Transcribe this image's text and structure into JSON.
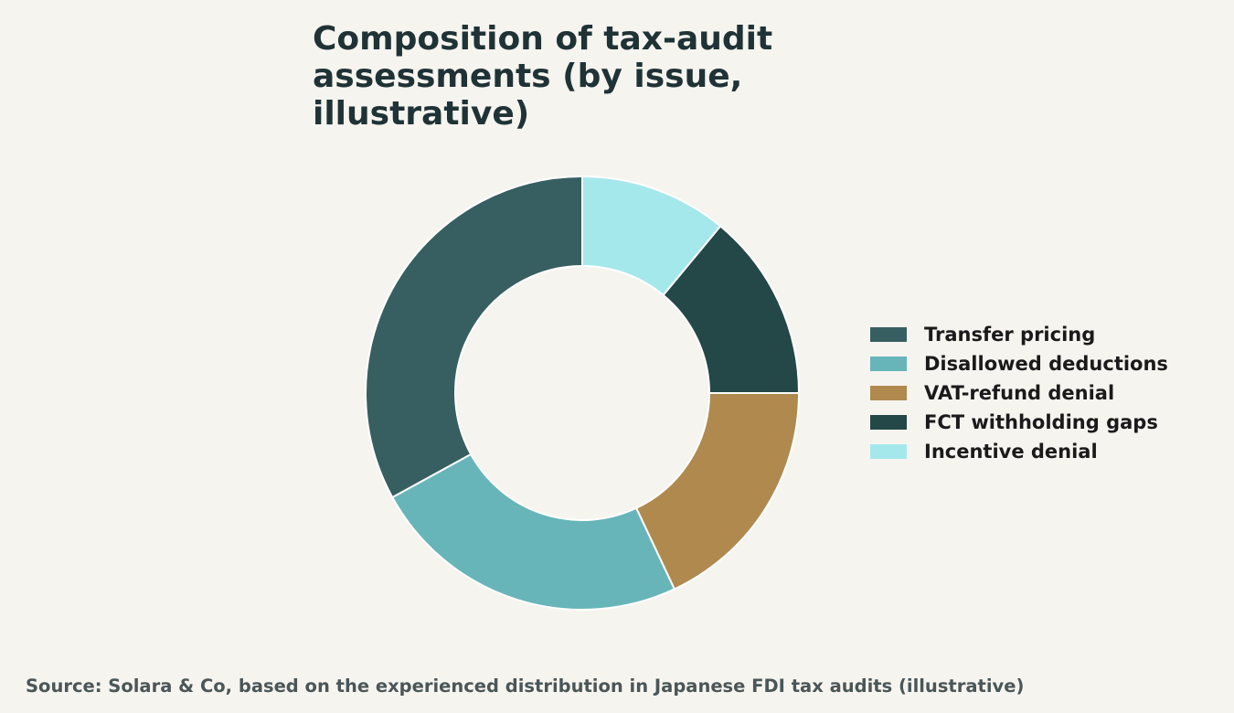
{
  "chart_data": {
    "type": "pie",
    "variant": "donut",
    "title": "Composition of tax-audit assessments (by issue, illustrative)",
    "categories": [
      "Transfer pricing",
      "Disallowed deductions",
      "VAT-refund denial",
      "FCT withholding gaps",
      "Incentive denial"
    ],
    "values": [
      33,
      24,
      18,
      14,
      11
    ],
    "colors": [
      "#375f61",
      "#67b5b9",
      "#af894e",
      "#244747",
      "#a5e8ec"
    ],
    "start_angle_deg": 0,
    "direction": "counterclockwise",
    "legend_position": "right",
    "source": "Source: Solara & Co, based on the experienced distribution in Japanese FDI tax audits (illustrative)"
  }
}
